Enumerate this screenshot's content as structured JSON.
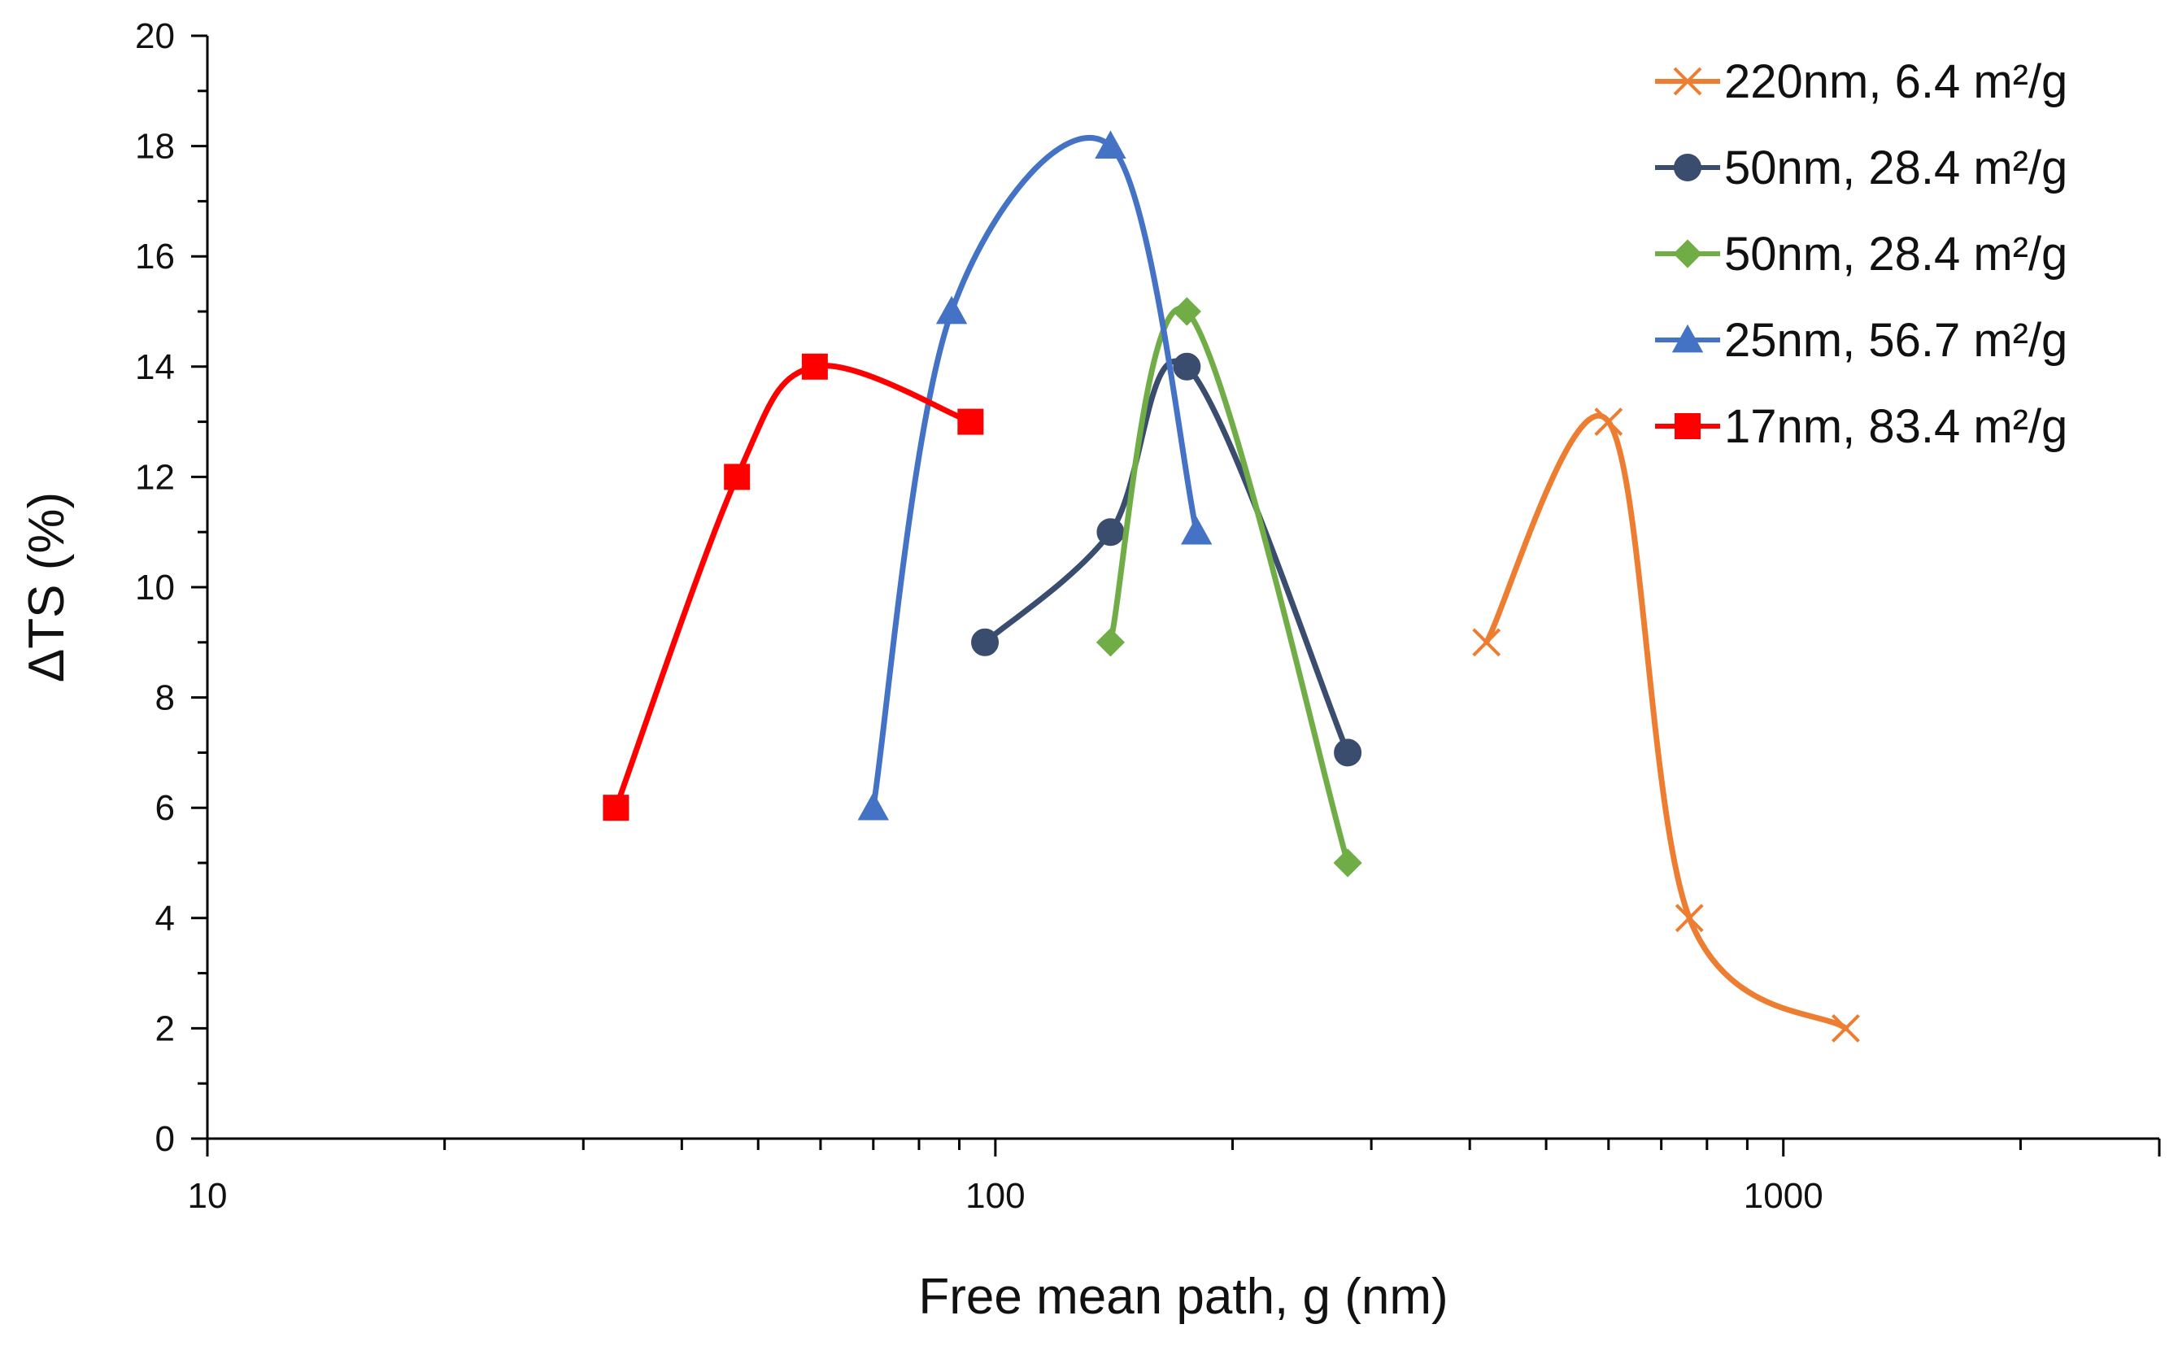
{
  "chart_data": {
    "type": "line",
    "title": "",
    "xlabel": "Free mean path, g (nm)",
    "ylabel": "ΔTS (%)",
    "xscale": "log",
    "xlim": [
      10,
      3000
    ],
    "ylim": [
      0,
      20
    ],
    "x_ticks": [
      10,
      100,
      1000
    ],
    "x_tick_labels": [
      "10",
      "100",
      "1000"
    ],
    "y_ticks": [
      0,
      2,
      4,
      6,
      8,
      10,
      12,
      14,
      16,
      18,
      20
    ],
    "y_tick_labels": [
      "0",
      "2",
      "4",
      "6",
      "8",
      "10",
      "12",
      "14",
      "16",
      "18",
      "20"
    ],
    "grid": false,
    "legend_position": "top-right",
    "series": [
      {
        "name": "220nm, 6.4 m²/g",
        "color": "#ED7D31",
        "marker": "x",
        "x": [
          420,
          600,
          760,
          1200
        ],
        "y": [
          9,
          13,
          4,
          2
        ]
      },
      {
        "name": "50nm, 28.4 m²/g",
        "color": "#3A4D6E",
        "marker": "circle",
        "x": [
          97,
          140,
          175,
          280
        ],
        "y": [
          9,
          11,
          14,
          7
        ]
      },
      {
        "name": "50nm, 28.4 m²/g",
        "color": "#70AD47",
        "marker": "diamond",
        "x": [
          140,
          175,
          280
        ],
        "y": [
          9,
          15,
          5
        ]
      },
      {
        "name": "25nm, 56.7 m²/g",
        "color": "#4472C4",
        "marker": "triangle",
        "x": [
          70,
          88,
          140,
          180
        ],
        "y": [
          6,
          15,
          18,
          11
        ]
      },
      {
        "name": "17nm, 83.4 m²/g",
        "color": "#FF0000",
        "marker": "square",
        "x": [
          33,
          47,
          59,
          93
        ],
        "y": [
          6,
          12,
          14,
          13
        ]
      }
    ]
  }
}
